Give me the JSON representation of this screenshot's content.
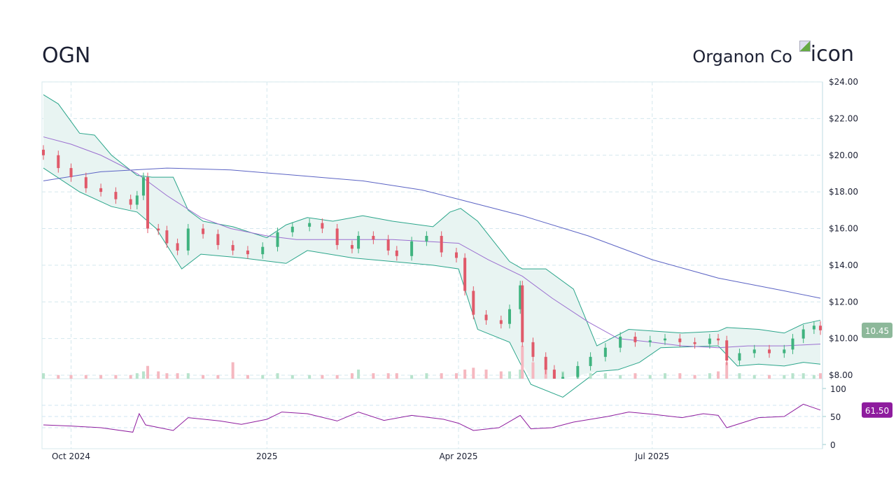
{
  "header": {
    "ticker": "OGN",
    "company": "Organon Co",
    "logo_alt": "icon"
  },
  "colors": {
    "up": "#3fb37f",
    "down": "#e05a6a",
    "sma200": "#5b63c4",
    "sma50": "#9b6fd0",
    "bb": "#2aa58a",
    "bb_fill": "#e8f4f2",
    "rsi": "#8e1c9e",
    "last_price_badge": "#8db89a"
  },
  "chart_data": [
    {
      "type": "candlestick",
      "title": "",
      "ylim": [
        8,
        24
      ],
      "y_ticks": [
        "$24.00",
        "$22.00",
        "$20.00",
        "$18.00",
        "$16.00",
        "$14.00",
        "$12.00",
        "$10.00",
        "$8.00"
      ],
      "y_tick_values": [
        24,
        22,
        20,
        18,
        16,
        14,
        12,
        10,
        8
      ],
      "x_ticks": [
        "Oct 2024",
        "2025",
        "Apr 2025",
        "Jul 2025"
      ],
      "x_tick_dates": [
        "2024-10-01",
        "2025-01-01",
        "2025-04-01",
        "2025-07-01"
      ],
      "xlim": [
        "2024-09-18",
        "2025-09-18"
      ],
      "last_price": "10.45",
      "close": [
        [
          "2024-09-18",
          20.0
        ],
        [
          "2024-09-25",
          19.3
        ],
        [
          "2024-10-01",
          18.8
        ],
        [
          "2024-10-08",
          18.2
        ],
        [
          "2024-10-15",
          18.0
        ],
        [
          "2024-10-22",
          17.6
        ],
        [
          "2024-10-29",
          17.3
        ],
        [
          "2024-11-01",
          17.8
        ],
        [
          "2024-11-04",
          18.8
        ],
        [
          "2024-11-06",
          16.0
        ],
        [
          "2024-11-11",
          15.9
        ],
        [
          "2024-11-15",
          15.2
        ],
        [
          "2024-11-20",
          14.8
        ],
        [
          "2024-11-25",
          16.0
        ],
        [
          "2024-12-02",
          15.7
        ],
        [
          "2024-12-09",
          15.1
        ],
        [
          "2024-12-16",
          14.8
        ],
        [
          "2024-12-23",
          14.6
        ],
        [
          "2024-12-30",
          15.0
        ],
        [
          "2025-01-06",
          15.8
        ],
        [
          "2025-01-13",
          16.1
        ],
        [
          "2025-01-21",
          16.3
        ],
        [
          "2025-01-27",
          16.0
        ],
        [
          "2025-02-03",
          15.1
        ],
        [
          "2025-02-10",
          14.9
        ],
        [
          "2025-02-13",
          15.6
        ],
        [
          "2025-02-20",
          15.4
        ],
        [
          "2025-02-27",
          14.8
        ],
        [
          "2025-03-03",
          14.5
        ],
        [
          "2025-03-10",
          15.3
        ],
        [
          "2025-03-17",
          15.6
        ],
        [
          "2025-03-24",
          14.7
        ],
        [
          "2025-03-31",
          14.4
        ],
        [
          "2025-04-04",
          12.6
        ],
        [
          "2025-04-08",
          11.3
        ],
        [
          "2025-04-14",
          11.0
        ],
        [
          "2025-04-21",
          10.8
        ],
        [
          "2025-04-25",
          11.6
        ],
        [
          "2025-04-30",
          12.9
        ],
        [
          "2025-05-01",
          9.8
        ],
        [
          "2025-05-06",
          9.0
        ],
        [
          "2025-05-12",
          8.3
        ],
        [
          "2025-05-16",
          7.6
        ],
        [
          "2025-05-20",
          7.9
        ],
        [
          "2025-05-27",
          8.5
        ],
        [
          "2025-06-02",
          9.0
        ],
        [
          "2025-06-09",
          9.5
        ],
        [
          "2025-06-16",
          10.1
        ],
        [
          "2025-06-23",
          9.8
        ],
        [
          "2025-06-30",
          9.9
        ],
        [
          "2025-07-07",
          10.0
        ],
        [
          "2025-07-14",
          9.8
        ],
        [
          "2025-07-21",
          9.7
        ],
        [
          "2025-07-28",
          10.0
        ],
        [
          "2025-08-01",
          9.9
        ],
        [
          "2025-08-05",
          8.8
        ],
        [
          "2025-08-11",
          9.2
        ],
        [
          "2025-08-18",
          9.4
        ],
        [
          "2025-08-25",
          9.2
        ],
        [
          "2025-09-01",
          9.4
        ],
        [
          "2025-09-05",
          10.0
        ],
        [
          "2025-09-10",
          10.5
        ],
        [
          "2025-09-15",
          10.7
        ],
        [
          "2025-09-18",
          10.45
        ]
      ],
      "volume_millions": [
        3,
        2,
        2,
        2,
        2,
        2,
        2,
        3,
        4,
        7,
        4,
        3,
        3,
        3,
        2,
        2,
        9,
        2,
        2,
        3,
        2,
        2,
        2,
        2,
        3,
        5,
        3,
        3,
        3,
        2,
        3,
        3,
        3,
        5,
        6,
        5,
        4,
        4,
        5,
        18,
        9,
        6,
        5,
        4,
        4,
        3,
        3,
        2,
        3,
        2,
        3,
        3,
        2,
        3,
        4,
        9,
        3,
        2,
        2,
        2,
        3,
        3,
        2,
        3
      ],
      "sma200": [
        [
          "2024-09-18",
          18.6
        ],
        [
          "2024-10-15",
          19.1
        ],
        [
          "2024-11-15",
          19.3
        ],
        [
          "2024-12-15",
          19.2
        ],
        [
          "2025-01-15",
          18.9
        ],
        [
          "2025-02-15",
          18.6
        ],
        [
          "2025-03-15",
          18.1
        ],
        [
          "2025-04-01",
          17.6
        ],
        [
          "2025-05-01",
          16.7
        ],
        [
          "2025-06-01",
          15.6
        ],
        [
          "2025-07-01",
          14.3
        ],
        [
          "2025-08-01",
          13.3
        ],
        [
          "2025-09-01",
          12.6
        ],
        [
          "2025-09-18",
          12.2
        ]
      ],
      "sma50": [
        [
          "2024-09-18",
          21.0
        ],
        [
          "2024-10-01",
          20.6
        ],
        [
          "2024-10-15",
          20.0
        ],
        [
          "2024-11-01",
          19.0
        ],
        [
          "2024-11-15",
          17.8
        ],
        [
          "2024-12-01",
          16.6
        ],
        [
          "2024-12-15",
          16.0
        ],
        [
          "2025-01-01",
          15.6
        ],
        [
          "2025-01-15",
          15.4
        ],
        [
          "2025-02-01",
          15.4
        ],
        [
          "2025-03-01",
          15.4
        ],
        [
          "2025-04-01",
          15.2
        ],
        [
          "2025-04-15",
          14.3
        ],
        [
          "2025-05-01",
          13.4
        ],
        [
          "2025-05-15",
          12.2
        ],
        [
          "2025-06-01",
          10.9
        ],
        [
          "2025-06-15",
          10.0
        ],
        [
          "2025-07-01",
          9.8
        ],
        [
          "2025-07-15",
          9.6
        ],
        [
          "2025-08-01",
          9.5
        ],
        [
          "2025-08-15",
          9.6
        ],
        [
          "2025-09-01",
          9.6
        ],
        [
          "2025-09-18",
          9.7
        ]
      ],
      "bb_upper": [
        [
          "2024-09-18",
          23.3
        ],
        [
          "2024-09-25",
          22.8
        ],
        [
          "2024-10-05",
          21.2
        ],
        [
          "2024-10-12",
          21.1
        ],
        [
          "2024-10-20",
          20.0
        ],
        [
          "2024-11-01",
          18.9
        ],
        [
          "2024-11-08",
          18.8
        ],
        [
          "2024-11-18",
          18.8
        ],
        [
          "2024-11-25",
          17.0
        ],
        [
          "2024-12-02",
          16.4
        ],
        [
          "2024-12-16",
          16.1
        ],
        [
          "2025-01-01",
          15.5
        ],
        [
          "2025-01-10",
          16.2
        ],
        [
          "2025-01-20",
          16.6
        ],
        [
          "2025-02-01",
          16.4
        ],
        [
          "2025-02-15",
          16.7
        ],
        [
          "2025-03-01",
          16.4
        ],
        [
          "2025-03-20",
          16.1
        ],
        [
          "2025-03-28",
          16.9
        ],
        [
          "2025-04-02",
          17.1
        ],
        [
          "2025-04-10",
          16.4
        ],
        [
          "2025-04-25",
          14.2
        ],
        [
          "2025-05-01",
          13.8
        ],
        [
          "2025-05-12",
          13.8
        ],
        [
          "2025-05-25",
          12.7
        ],
        [
          "2025-06-05",
          9.6
        ],
        [
          "2025-06-20",
          10.5
        ],
        [
          "2025-07-15",
          10.3
        ],
        [
          "2025-08-01",
          10.4
        ],
        [
          "2025-08-05",
          10.6
        ],
        [
          "2025-08-20",
          10.5
        ],
        [
          "2025-09-01",
          10.3
        ],
        [
          "2025-09-10",
          10.8
        ],
        [
          "2025-09-18",
          11.0
        ]
      ],
      "bb_lower": [
        [
          "2024-09-18",
          19.3
        ],
        [
          "2024-10-05",
          18.0
        ],
        [
          "2024-10-20",
          17.2
        ],
        [
          "2024-11-01",
          16.9
        ],
        [
          "2024-11-10",
          16.0
        ],
        [
          "2024-11-22",
          13.8
        ],
        [
          "2024-12-01",
          14.6
        ],
        [
          "2024-12-20",
          14.4
        ],
        [
          "2025-01-10",
          14.1
        ],
        [
          "2025-01-20",
          14.8
        ],
        [
          "2025-02-10",
          14.4
        ],
        [
          "2025-03-01",
          14.2
        ],
        [
          "2025-03-20",
          14.0
        ],
        [
          "2025-04-01",
          13.8
        ],
        [
          "2025-04-10",
          10.5
        ],
        [
          "2025-04-25",
          9.8
        ],
        [
          "2025-05-05",
          7.5
        ],
        [
          "2025-05-20",
          6.8
        ],
        [
          "2025-06-05",
          8.2
        ],
        [
          "2025-06-15",
          8.3
        ],
        [
          "2025-06-25",
          8.7
        ],
        [
          "2025-07-05",
          9.5
        ],
        [
          "2025-08-01",
          9.6
        ],
        [
          "2025-08-10",
          8.5
        ],
        [
          "2025-08-20",
          8.6
        ],
        [
          "2025-09-01",
          8.5
        ],
        [
          "2025-09-10",
          8.7
        ],
        [
          "2025-09-18",
          8.6
        ]
      ]
    },
    {
      "type": "line",
      "title": "",
      "ylim": [
        0,
        100
      ],
      "y_ticks": [
        "100",
        "50",
        "0"
      ],
      "y_tick_values": [
        100,
        50,
        0
      ],
      "guide_levels": [
        70,
        50,
        30
      ],
      "last_value": "61.50",
      "rsi": [
        [
          "2024-09-18",
          35
        ],
        [
          "2024-10-01",
          33
        ],
        [
          "2024-10-15",
          30
        ],
        [
          "2024-10-30",
          22
        ],
        [
          "2024-11-02",
          55
        ],
        [
          "2024-11-05",
          35
        ],
        [
          "2024-11-18",
          25
        ],
        [
          "2024-11-25",
          48
        ],
        [
          "2024-12-10",
          42
        ],
        [
          "2024-12-20",
          36
        ],
        [
          "2025-01-01",
          45
        ],
        [
          "2025-01-08",
          58
        ],
        [
          "2025-01-20",
          55
        ],
        [
          "2025-02-03",
          42
        ],
        [
          "2025-02-13",
          58
        ],
        [
          "2025-02-25",
          43
        ],
        [
          "2025-03-10",
          52
        ],
        [
          "2025-03-25",
          45
        ],
        [
          "2025-04-01",
          38
        ],
        [
          "2025-04-08",
          25
        ],
        [
          "2025-04-20",
          30
        ],
        [
          "2025-04-30",
          52
        ],
        [
          "2025-05-05",
          28
        ],
        [
          "2025-05-15",
          30
        ],
        [
          "2025-05-25",
          40
        ],
        [
          "2025-06-10",
          50
        ],
        [
          "2025-06-20",
          58
        ],
        [
          "2025-07-01",
          54
        ],
        [
          "2025-07-15",
          48
        ],
        [
          "2025-07-25",
          55
        ],
        [
          "2025-08-01",
          52
        ],
        [
          "2025-08-05",
          30
        ],
        [
          "2025-08-20",
          48
        ],
        [
          "2025-09-01",
          50
        ],
        [
          "2025-09-10",
          72
        ],
        [
          "2025-09-18",
          61.5
        ]
      ]
    }
  ]
}
